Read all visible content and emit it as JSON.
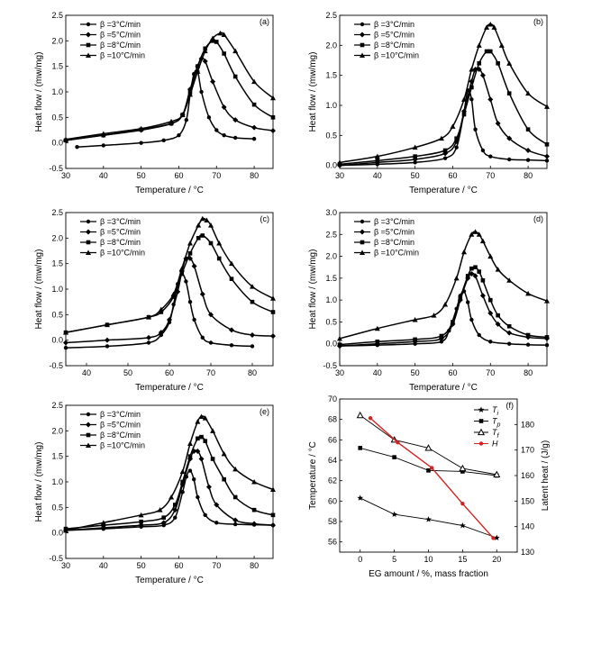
{
  "chart_data": [
    {
      "id": "a",
      "type": "line",
      "panel_label": "(a)",
      "xlabel": "Temperature / °C",
      "ylabel": "Heat flow / (mw/mg)",
      "xlim": [
        30,
        85
      ],
      "ylim": [
        -0.5,
        2.5
      ],
      "xticks": [
        30,
        40,
        50,
        60,
        70,
        80
      ],
      "yticks": [
        -0.5,
        0.0,
        0.5,
        1.0,
        1.5,
        2.0,
        2.5
      ],
      "tick_labels_y": [
        "-0.5",
        "0.0",
        "0.5",
        "1.0",
        "1.5",
        "2.0",
        "2.5"
      ],
      "legend_position": "upper-left",
      "series": [
        {
          "name": "β =3°C/min",
          "marker": "dot",
          "x": [
            33,
            40,
            50,
            56,
            60,
            62,
            63,
            64,
            65,
            66,
            68,
            70,
            72,
            75,
            80
          ],
          "y": [
            -0.08,
            -0.05,
            0.0,
            0.05,
            0.15,
            0.45,
            0.95,
            1.35,
            1.4,
            1.0,
            0.5,
            0.25,
            0.15,
            0.1,
            0.08
          ]
        },
        {
          "name": "β =5°C/min",
          "marker": "diamond",
          "x": [
            30,
            40,
            50,
            58,
            61,
            63,
            65,
            66,
            67,
            69,
            72,
            75,
            80,
            85
          ],
          "y": [
            0.05,
            0.15,
            0.25,
            0.38,
            0.55,
            1.05,
            1.5,
            1.65,
            1.6,
            1.2,
            0.7,
            0.45,
            0.3,
            0.24
          ]
        },
        {
          "name": "β =8°C/min",
          "marker": "square",
          "x": [
            30,
            40,
            50,
            58,
            61,
            63,
            65,
            67,
            69,
            70,
            72,
            75,
            80,
            85
          ],
          "y": [
            0.05,
            0.15,
            0.26,
            0.38,
            0.55,
            1.0,
            1.5,
            1.85,
            2.0,
            1.98,
            1.75,
            1.3,
            0.75,
            0.5
          ]
        },
        {
          "name": "β =10°C/min",
          "marker": "triangle",
          "x": [
            30,
            40,
            50,
            58,
            61,
            63,
            65,
            67,
            69,
            71,
            72,
            75,
            80,
            85
          ],
          "y": [
            0.07,
            0.18,
            0.28,
            0.42,
            0.55,
            0.95,
            1.4,
            1.8,
            2.05,
            2.15,
            2.12,
            1.8,
            1.2,
            0.88
          ]
        }
      ]
    },
    {
      "id": "b",
      "type": "line",
      "panel_label": "(b)",
      "xlabel": "Temperature / °C",
      "ylabel": "Heat flow / (mw/mg)",
      "xlim": [
        30,
        85
      ],
      "ylim": [
        -0.05,
        2.5
      ],
      "xticks": [
        30,
        40,
        50,
        60,
        70,
        80
      ],
      "yticks": [
        0.0,
        0.5,
        1.0,
        1.5,
        2.0,
        2.5
      ],
      "tick_labels_y": [
        "0.0",
        "0.5",
        "1.0",
        "1.5",
        "2.0",
        "2.5"
      ],
      "legend_position": "upper-left",
      "series": [
        {
          "name": "β =3°C/min",
          "marker": "dot",
          "x": [
            30,
            40,
            50,
            58,
            61,
            63,
            64,
            65,
            66,
            68,
            70,
            75,
            80,
            85
          ],
          "y": [
            0.0,
            0.02,
            0.05,
            0.12,
            0.3,
            0.9,
            1.25,
            1.1,
            0.6,
            0.25,
            0.15,
            0.1,
            0.09,
            0.08
          ]
        },
        {
          "name": "β =5°C/min",
          "marker": "diamond",
          "x": [
            30,
            40,
            50,
            58,
            61,
            63,
            65,
            66,
            67,
            68,
            70,
            72,
            75,
            80,
            85
          ],
          "y": [
            0.0,
            0.05,
            0.1,
            0.2,
            0.4,
            0.9,
            1.4,
            1.6,
            1.6,
            1.5,
            1.1,
            0.7,
            0.45,
            0.25,
            0.15
          ]
        },
        {
          "name": "β =8°C/min",
          "marker": "square",
          "x": [
            30,
            40,
            50,
            58,
            61,
            63,
            65,
            67,
            69,
            70,
            72,
            75,
            80,
            85
          ],
          "y": [
            0.02,
            0.08,
            0.15,
            0.25,
            0.45,
            0.85,
            1.3,
            1.7,
            1.9,
            1.9,
            1.7,
            1.2,
            0.6,
            0.35
          ]
        },
        {
          "name": "β =10°C/min",
          "marker": "triangle",
          "x": [
            30,
            40,
            50,
            57,
            60,
            63,
            65,
            67,
            69,
            70,
            71,
            73,
            75,
            80,
            85
          ],
          "y": [
            0.05,
            0.15,
            0.3,
            0.45,
            0.65,
            1.1,
            1.6,
            2.0,
            2.3,
            2.35,
            2.3,
            2.0,
            1.7,
            1.2,
            0.98
          ]
        }
      ]
    },
    {
      "id": "c",
      "type": "line",
      "panel_label": "(c)",
      "xlabel": "Temperature / °C",
      "ylabel": "Heat flow / (mw/mg)",
      "xlim": [
        35,
        85
      ],
      "ylim": [
        -0.5,
        2.5
      ],
      "xticks": [
        40,
        50,
        60,
        70,
        80
      ],
      "yticks": [
        -0.5,
        0.0,
        0.5,
        1.0,
        1.5,
        2.0,
        2.5
      ],
      "tick_labels_y": [
        "-0.5",
        "0.0",
        "0.5",
        "1.0",
        "1.5",
        "2.0",
        "2.5"
      ],
      "legend_position": "upper-left",
      "series": [
        {
          "name": "β =3°C/min",
          "marker": "dot",
          "x": [
            35,
            45,
            55,
            58,
            60,
            61,
            62,
            63,
            64,
            65,
            66,
            68,
            70,
            75,
            80
          ],
          "y": [
            -0.15,
            -0.12,
            -0.05,
            0.1,
            0.35,
            0.7,
            1.1,
            1.3,
            1.15,
            0.75,
            0.4,
            0.05,
            -0.05,
            -0.1,
            -0.12
          ]
        },
        {
          "name": "β =5°C/min",
          "marker": "diamond",
          "x": [
            35,
            45,
            55,
            58,
            60,
            62,
            63,
            64,
            65,
            66,
            68,
            70,
            75,
            80,
            85
          ],
          "y": [
            -0.05,
            0.0,
            0.05,
            0.15,
            0.4,
            0.95,
            1.35,
            1.6,
            1.6,
            1.45,
            0.9,
            0.5,
            0.2,
            0.1,
            0.08
          ]
        },
        {
          "name": "β =8°C/min",
          "marker": "square",
          "x": [
            35,
            45,
            55,
            58,
            61,
            63,
            65,
            67,
            68,
            70,
            72,
            75,
            80,
            85
          ],
          "y": [
            0.15,
            0.3,
            0.45,
            0.55,
            0.85,
            1.3,
            1.7,
            2.0,
            2.05,
            1.9,
            1.6,
            1.2,
            0.75,
            0.55
          ]
        },
        {
          "name": "β =10°C/min",
          "marker": "triangle",
          "x": [
            35,
            45,
            55,
            58,
            61,
            63,
            65,
            67,
            68,
            69,
            70,
            72,
            75,
            80,
            85
          ],
          "y": [
            0.15,
            0.3,
            0.45,
            0.6,
            0.9,
            1.4,
            1.9,
            2.25,
            2.38,
            2.35,
            2.25,
            1.9,
            1.5,
            1.05,
            0.82
          ]
        }
      ]
    },
    {
      "id": "d",
      "type": "line",
      "panel_label": "(d)",
      "xlabel": "Temperature / °C",
      "ylabel": "Heat flow / (mw/mg)",
      "xlim": [
        30,
        85
      ],
      "ylim": [
        -0.5,
        3.0
      ],
      "xticks": [
        30,
        40,
        50,
        60,
        70,
        80
      ],
      "yticks": [
        -0.5,
        0.0,
        0.5,
        1.0,
        1.5,
        2.0,
        2.5,
        3.0
      ],
      "tick_labels_y": [
        "-0.5",
        "0.0",
        "0.5",
        "1.0",
        "1.5",
        "2.0",
        "2.5",
        "3.0"
      ],
      "legend_position": "upper-left",
      "series": [
        {
          "name": "β =3°C/min",
          "marker": "dot",
          "x": [
            30,
            40,
            50,
            57,
            59,
            61,
            62,
            63,
            64,
            65,
            67,
            70,
            75,
            80,
            85
          ],
          "y": [
            -0.05,
            -0.03,
            0.0,
            0.05,
            0.3,
            0.8,
            1.1,
            1.2,
            0.95,
            0.55,
            0.2,
            0.05,
            0.0,
            -0.02,
            -0.03
          ]
        },
        {
          "name": "β =5°C/min",
          "marker": "diamond",
          "x": [
            30,
            40,
            50,
            57,
            60,
            62,
            64,
            65,
            66,
            68,
            70,
            72,
            75,
            80,
            85
          ],
          "y": [
            -0.05,
            0.0,
            0.05,
            0.12,
            0.45,
            1.0,
            1.5,
            1.6,
            1.55,
            1.1,
            0.7,
            0.45,
            0.25,
            0.15,
            0.12
          ]
        },
        {
          "name": "β =8°C/min",
          "marker": "square",
          "x": [
            30,
            40,
            50,
            57,
            60,
            62,
            64,
            65,
            66,
            67,
            68,
            70,
            72,
            75,
            80,
            85
          ],
          "y": [
            -0.02,
            0.05,
            0.1,
            0.18,
            0.5,
            1.05,
            1.55,
            1.72,
            1.75,
            1.65,
            1.45,
            1.0,
            0.65,
            0.4,
            0.2,
            0.15
          ]
        },
        {
          "name": "β =10°C/min",
          "marker": "triangle",
          "x": [
            30,
            40,
            50,
            55,
            58,
            61,
            63,
            65,
            66,
            67,
            68,
            70,
            72,
            75,
            80,
            85
          ],
          "y": [
            0.12,
            0.35,
            0.55,
            0.65,
            0.9,
            1.5,
            2.1,
            2.5,
            2.56,
            2.5,
            2.35,
            2.0,
            1.7,
            1.45,
            1.15,
            0.98
          ]
        }
      ]
    },
    {
      "id": "e",
      "type": "line",
      "panel_label": "(e)",
      "xlabel": "Temperature / °C",
      "ylabel": "Heat flow / (mw/mg)",
      "xlim": [
        30,
        85
      ],
      "ylim": [
        -0.5,
        2.5
      ],
      "xticks": [
        30,
        40,
        50,
        60,
        70,
        80
      ],
      "yticks": [
        -0.5,
        0.0,
        0.5,
        1.0,
        1.5,
        2.0,
        2.5
      ],
      "tick_labels_y": [
        "-0.5",
        "0.0",
        "0.5",
        "1.0",
        "1.5",
        "2.0",
        "2.5"
      ],
      "legend_position": "upper-left",
      "series": [
        {
          "name": "β =3°C/min",
          "marker": "dot",
          "x": [
            30,
            40,
            50,
            56,
            59,
            61,
            62,
            63,
            64,
            65,
            67,
            70,
            75,
            80,
            85
          ],
          "y": [
            0.05,
            0.08,
            0.12,
            0.15,
            0.3,
            0.8,
            1.1,
            1.22,
            1.05,
            0.7,
            0.35,
            0.2,
            0.17,
            0.16,
            0.15
          ]
        },
        {
          "name": "β =5°C/min",
          "marker": "diamond",
          "x": [
            30,
            40,
            50,
            56,
            59,
            61,
            63,
            64,
            65,
            66,
            68,
            70,
            75,
            80,
            85
          ],
          "y": [
            0.05,
            0.1,
            0.15,
            0.2,
            0.45,
            0.95,
            1.45,
            1.6,
            1.6,
            1.45,
            0.9,
            0.55,
            0.25,
            0.18,
            0.15
          ]
        },
        {
          "name": "β =8°C/min",
          "marker": "square",
          "x": [
            30,
            40,
            50,
            56,
            59,
            61,
            63,
            65,
            66,
            67,
            69,
            72,
            75,
            80,
            85
          ],
          "y": [
            0.08,
            0.15,
            0.22,
            0.3,
            0.55,
            1.0,
            1.5,
            1.85,
            1.88,
            1.8,
            1.45,
            1.05,
            0.7,
            0.45,
            0.35
          ]
        },
        {
          "name": "β =10°C/min",
          "marker": "triangle",
          "x": [
            30,
            40,
            50,
            55,
            58,
            61,
            63,
            65,
            66,
            67,
            69,
            72,
            75,
            80,
            85
          ],
          "y": [
            0.05,
            0.2,
            0.35,
            0.45,
            0.7,
            1.2,
            1.75,
            2.18,
            2.28,
            2.25,
            2.0,
            1.55,
            1.25,
            1.0,
            0.85
          ]
        }
      ]
    },
    {
      "id": "f",
      "type": "line",
      "panel_label": "(f)",
      "xlabel": "EG amount / %, mass fraction",
      "ylabel": "Temperature / °C",
      "ylabel_right": "Latent heat / (J/g)",
      "xlim": [
        -3,
        23
      ],
      "ylim": [
        55,
        70
      ],
      "ylim_right": [
        130,
        190
      ],
      "xticks": [
        0,
        5,
        10,
        15,
        20
      ],
      "yticks": [
        56,
        58,
        60,
        62,
        64,
        66,
        68,
        70
      ],
      "yticks_right": [
        130,
        140,
        150,
        160,
        170,
        180
      ],
      "tick_labels_y": [
        "56",
        "58",
        "60",
        "62",
        "64",
        "66",
        "68",
        "70"
      ],
      "tick_labels_y_right": [
        "130",
        "140",
        "150",
        "160",
        "170",
        "180"
      ],
      "legend_position": "upper-right",
      "series": [
        {
          "name": "T",
          "subscript": "i",
          "axis": "left",
          "marker": "star",
          "color": "#000000",
          "x": [
            0,
            5,
            10,
            15,
            20
          ],
          "y": [
            60.3,
            58.7,
            58.2,
            57.6,
            56.4
          ]
        },
        {
          "name": "T",
          "subscript": "p",
          "axis": "left",
          "marker": "square",
          "color": "#000000",
          "x": [
            0,
            5,
            10,
            15,
            20
          ],
          "y": [
            65.2,
            64.3,
            63.0,
            62.9,
            62.5
          ]
        },
        {
          "name": "T",
          "subscript": "f",
          "axis": "left",
          "marker": "open-triangle",
          "color": "#000000",
          "x": [
            0,
            5,
            10,
            15,
            20
          ],
          "y": [
            68.4,
            66.0,
            65.2,
            63.2,
            62.6
          ]
        },
        {
          "name": "H",
          "axis": "right",
          "marker": "dot",
          "color": "#d62020",
          "x": [
            1.5,
            5.5,
            10.5,
            15,
            19.5
          ],
          "y": [
            182.5,
            173.0,
            163.0,
            149.0,
            135.5
          ]
        }
      ]
    }
  ]
}
